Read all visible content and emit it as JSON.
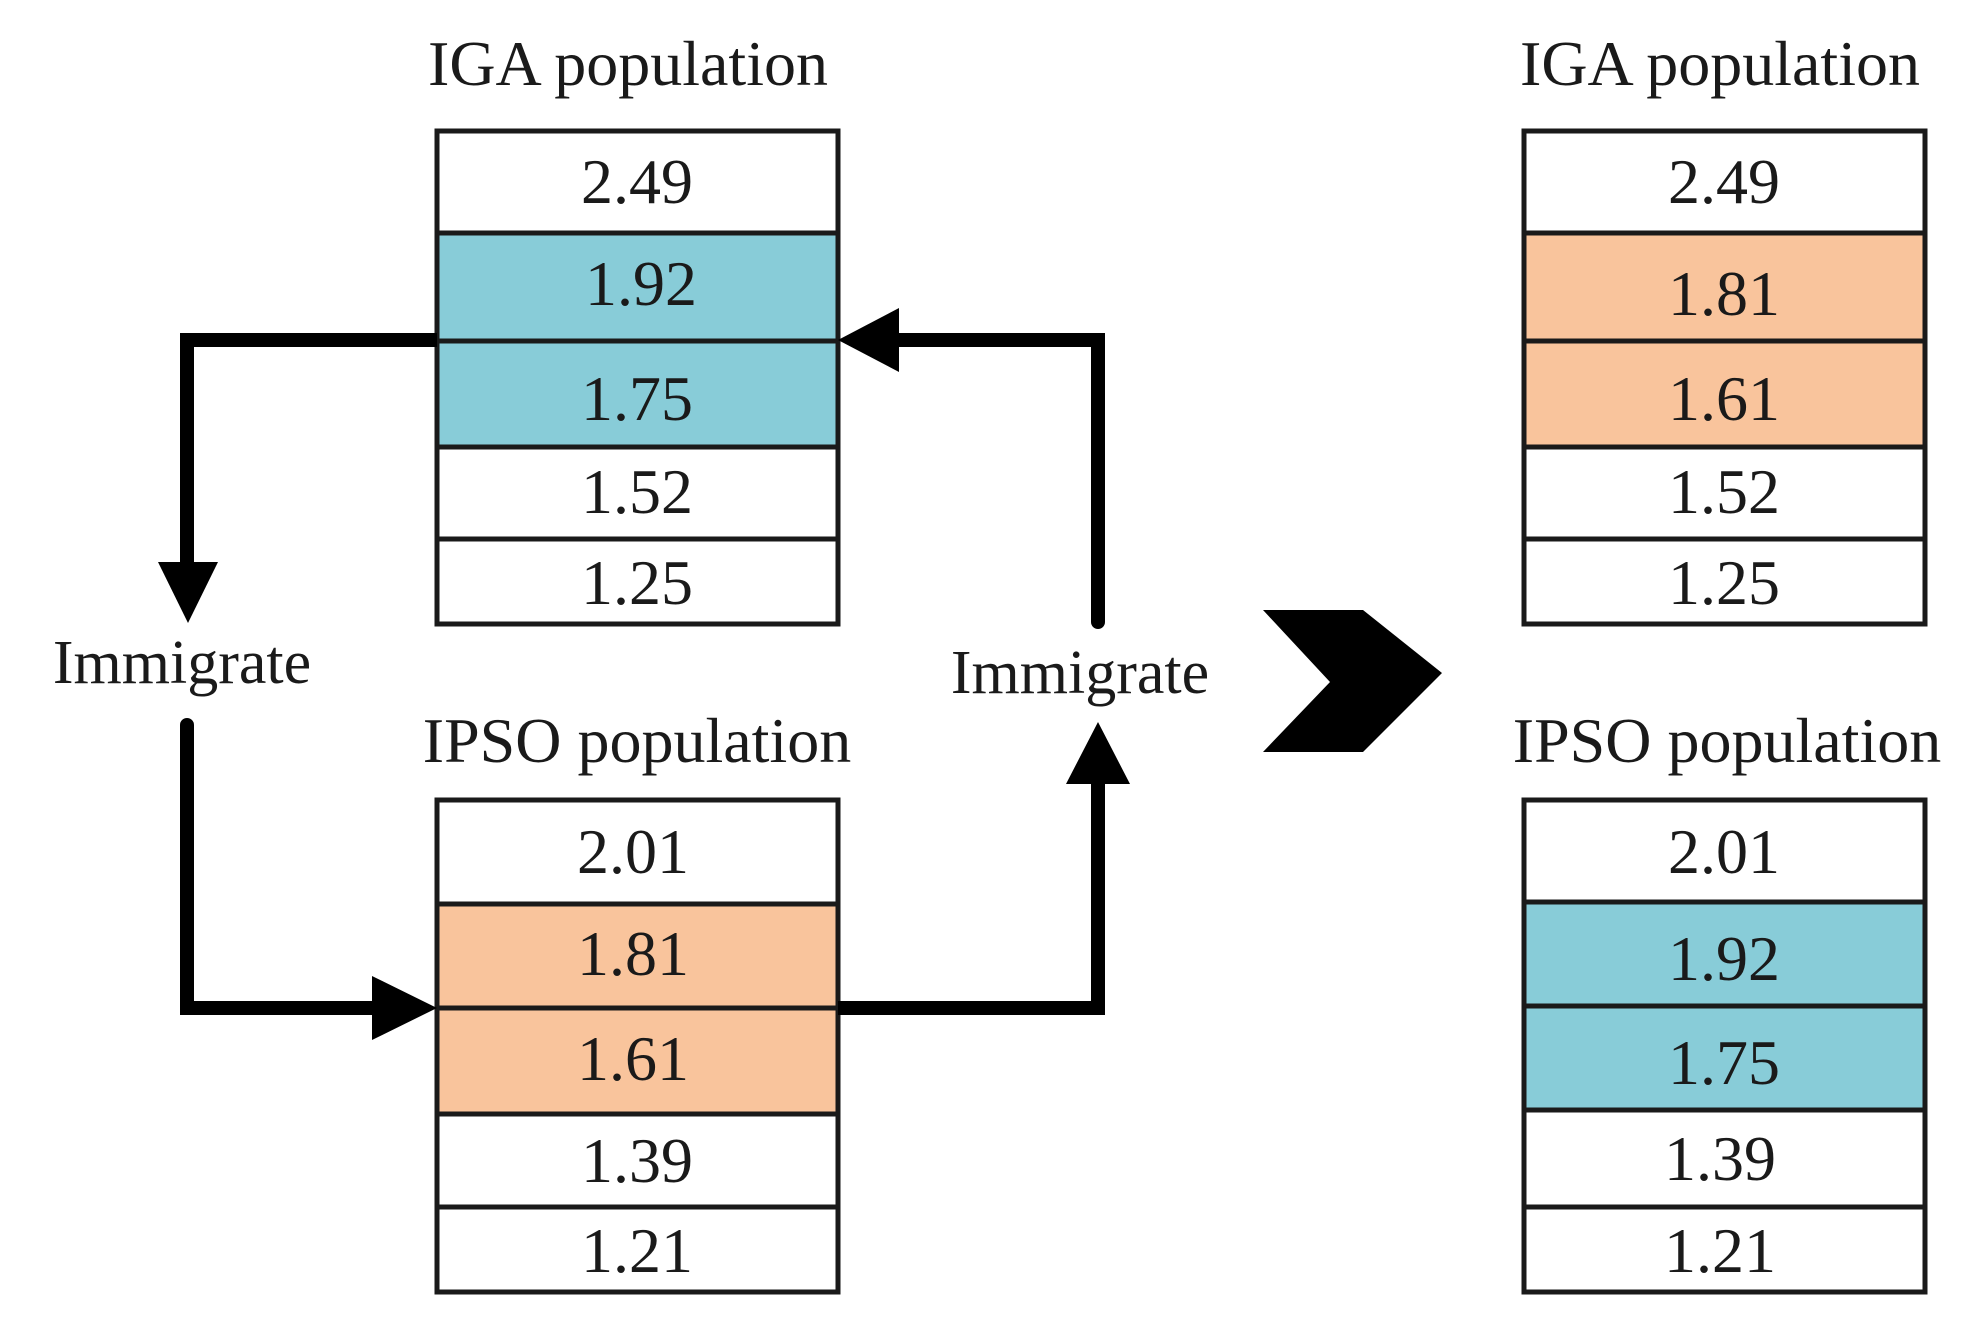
{
  "colors": {
    "blue": "#88CCD8",
    "orange": "#F9C49C",
    "white": "#FFFFFF",
    "stroke": "#1A1A1A"
  },
  "before": {
    "iga": {
      "title": "IGA population",
      "cells": [
        {
          "value": "2.49",
          "fill": "white"
        },
        {
          "value": "1.92",
          "fill": "blue"
        },
        {
          "value": "1.75",
          "fill": "blue"
        },
        {
          "value": "1.52",
          "fill": "white"
        },
        {
          "value": "1.25",
          "fill": "white"
        }
      ]
    },
    "ipso": {
      "title": "IPSO population",
      "cells": [
        {
          "value": "2.01",
          "fill": "white"
        },
        {
          "value": "1.81",
          "fill": "orange"
        },
        {
          "value": "1.61",
          "fill": "orange"
        },
        {
          "value": "1.39",
          "fill": "white"
        },
        {
          "value": "1.21",
          "fill": "white"
        }
      ]
    }
  },
  "after": {
    "iga": {
      "title": "IGA population",
      "cells": [
        {
          "value": "2.49",
          "fill": "white"
        },
        {
          "value": "1.81",
          "fill": "orange"
        },
        {
          "value": "1.61",
          "fill": "orange"
        },
        {
          "value": "1.52",
          "fill": "white"
        },
        {
          "value": "1.25",
          "fill": "white"
        }
      ]
    },
    "ipso": {
      "title": "IPSO population",
      "cells": [
        {
          "value": "2.01",
          "fill": "white"
        },
        {
          "value": "1.92",
          "fill": "blue"
        },
        {
          "value": "1.75",
          "fill": "blue"
        },
        {
          "value": "1.39",
          "fill": "white"
        },
        {
          "value": "1.21",
          "fill": "white"
        }
      ]
    }
  },
  "labels": {
    "immigrate_left": "Immigrate",
    "immigrate_right": "Immigrate"
  }
}
